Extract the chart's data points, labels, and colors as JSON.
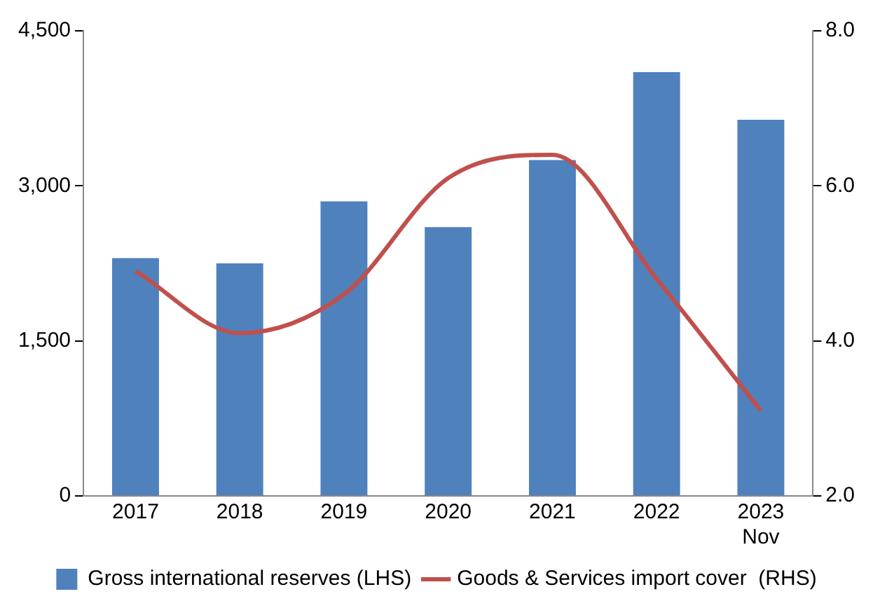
{
  "chart_data": {
    "type": "bar",
    "categories": [
      "2017",
      "2018",
      "2019",
      "2020",
      "2021",
      "2022",
      "2023 Nov"
    ],
    "series": [
      {
        "name": "Gross international reserves (LHS)",
        "color": "#4f81bd",
        "values": [
          2300,
          2250,
          2850,
          2600,
          3250,
          4100,
          3640
        ]
      },
      {
        "name": "Goods & Services import cover  (RHS)",
        "type": "line",
        "axis": "y2",
        "color": "#c0504d",
        "values": [
          4.9,
          4.1,
          4.6,
          6.1,
          6.4,
          4.8,
          3.1
        ]
      }
    ],
    "ylim": [
      0,
      4500
    ],
    "yticks": [
      0,
      {
        "value": 1500,
        "label": "1,500"
      },
      {
        "value": 3000,
        "label": "3,000"
      },
      {
        "value": 4500,
        "label": "4,500"
      }
    ],
    "y2lim": [
      2,
      8
    ],
    "y2ticks": [
      {
        "value": 2,
        "label": "2.0"
      },
      {
        "value": 4,
        "label": "4.0"
      },
      {
        "value": 6,
        "label": "6.0"
      },
      {
        "value": 8,
        "label": "8.0"
      }
    ],
    "grid": false,
    "legend": "bottom",
    "marker": "none",
    "line_style": "solid"
  }
}
